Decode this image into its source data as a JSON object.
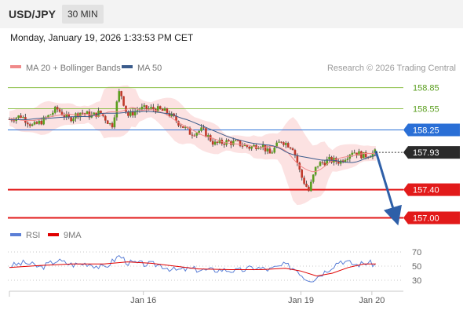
{
  "header": {
    "symbol": "USD/JPY",
    "timeframe": "30 MIN",
    "datetime": "Monday, January 19, 2026 1:33:53 PM CET"
  },
  "chart_data": [
    {
      "type": "candlestick",
      "legend": [
        {
          "name": "MA 20 + Bollinger Bands",
          "color": "#f08a8a"
        },
        {
          "name": "MA 50",
          "color": "#3b5c8c"
        }
      ],
      "source_note": "Research © 2026 Trading Central",
      "ylim": [
        156.95,
        158.98
      ],
      "x_range": [
        0,
        100
      ],
      "x_ticks": [
        {
          "x": 34,
          "label": "Jan 16"
        },
        {
          "x": 74,
          "label": "Jan 19"
        },
        {
          "x": 92,
          "label": "Jan 20"
        }
      ],
      "levels": [
        {
          "value": 158.85,
          "label": "158.85",
          "kind": "resistance"
        },
        {
          "value": 158.55,
          "label": "158.55",
          "kind": "resistance"
        },
        {
          "value": 158.25,
          "label": "158.25",
          "kind": "pivot"
        },
        {
          "value": 157.4,
          "label": "157.40",
          "kind": "support"
        },
        {
          "value": 157.0,
          "label": "157.00",
          "kind": "support"
        }
      ],
      "current_price": {
        "value": 157.93,
        "label": "157.93"
      },
      "forecast_arrow": {
        "from": [
          93,
          157.95
        ],
        "to": [
          98,
          157.02
        ]
      },
      "key_points": [
        [
          0,
          158.4
        ],
        [
          3,
          158.45
        ],
        [
          6,
          158.3
        ],
        [
          9,
          158.4
        ],
        [
          12,
          158.55
        ],
        [
          15,
          158.4
        ],
        [
          18,
          158.5
        ],
        [
          21,
          158.45
        ],
        [
          23,
          158.5
        ],
        [
          26,
          158.3
        ],
        [
          28,
          158.82
        ],
        [
          30,
          158.45
        ],
        [
          33,
          158.55
        ],
        [
          37,
          158.55
        ],
        [
          40,
          158.5
        ],
        [
          43,
          158.35
        ],
        [
          46,
          158.2
        ],
        [
          49,
          158.25
        ],
        [
          52,
          158.05
        ],
        [
          55,
          158.08
        ],
        [
          58,
          158.06
        ],
        [
          61,
          158.0
        ],
        [
          64,
          158.05
        ],
        [
          66,
          157.9
        ],
        [
          69,
          158.1
        ],
        [
          72,
          158.0
        ],
        [
          74,
          157.6
        ],
        [
          76,
          157.38
        ],
        [
          78,
          157.75
        ],
        [
          81,
          157.82
        ],
        [
          84,
          157.8
        ],
        [
          87,
          157.95
        ],
        [
          90,
          157.88
        ],
        [
          93,
          157.93
        ]
      ]
    },
    {
      "type": "line",
      "legend": [
        {
          "name": "RSI",
          "color": "#5b7fd6"
        },
        {
          "name": "9MA",
          "color": "#e00000"
        }
      ],
      "ylim": [
        20,
        80
      ],
      "y_ticks": [
        70,
        50,
        30
      ],
      "rsi_points": [
        [
          0,
          50
        ],
        [
          4,
          55
        ],
        [
          8,
          48
        ],
        [
          12,
          58
        ],
        [
          16,
          52
        ],
        [
          20,
          54
        ],
        [
          24,
          47
        ],
        [
          28,
          65
        ],
        [
          30,
          55
        ],
        [
          34,
          53
        ],
        [
          38,
          52
        ],
        [
          42,
          44
        ],
        [
          46,
          46
        ],
        [
          50,
          44
        ],
        [
          54,
          45
        ],
        [
          58,
          43
        ],
        [
          62,
          48
        ],
        [
          66,
          45
        ],
        [
          70,
          52
        ],
        [
          73,
          45
        ],
        [
          75,
          33
        ],
        [
          77,
          31
        ],
        [
          80,
          42
        ],
        [
          84,
          58
        ],
        [
          88,
          52
        ],
        [
          91,
          55
        ],
        [
          93,
          52
        ]
      ],
      "ma_points": [
        [
          0,
          48
        ],
        [
          8,
          51
        ],
        [
          16,
          53
        ],
        [
          24,
          53
        ],
        [
          30,
          56
        ],
        [
          36,
          54
        ],
        [
          42,
          50
        ],
        [
          48,
          46
        ],
        [
          56,
          45
        ],
        [
          64,
          45
        ],
        [
          70,
          47
        ],
        [
          74,
          43
        ],
        [
          78,
          36
        ],
        [
          82,
          40
        ],
        [
          86,
          48
        ],
        [
          90,
          53
        ],
        [
          93,
          53
        ]
      ]
    }
  ]
}
